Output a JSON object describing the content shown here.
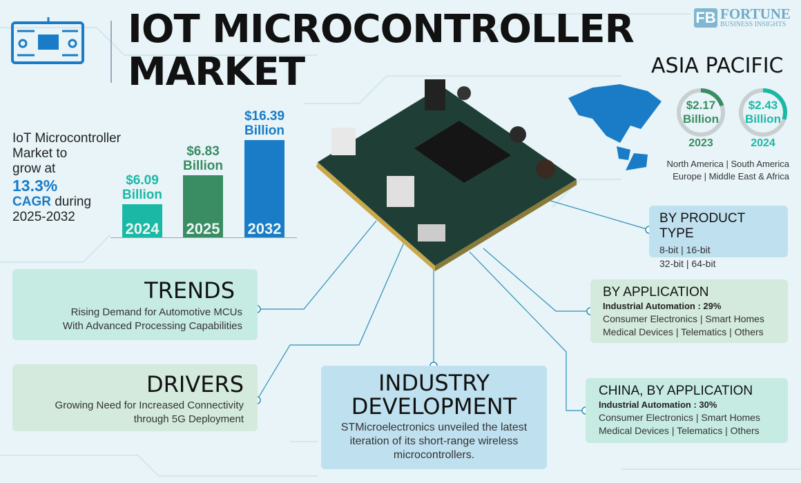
{
  "header": {
    "title_line1": "IOT MICROCONTROLLER",
    "title_line2": "MARKET",
    "logo_word": "FORTUNE",
    "logo_sub": "BUSINESS INSIGHTS"
  },
  "growth": {
    "line1": "IoT Microcontroller",
    "line2": "Market to",
    "line3": "grow at",
    "cagr": "13.3%",
    "cagr_label": "CAGR",
    "during": "during",
    "period": "2025-2032"
  },
  "chart_data": {
    "type": "bar",
    "categories": [
      "2024",
      "2025",
      "2032"
    ],
    "values": [
      6.09,
      6.83,
      16.39
    ],
    "value_labels": [
      "$6.09",
      "$6.83",
      "$16.39"
    ],
    "unit": "Billion",
    "colors": [
      "#1bb8a6",
      "#3a8c62",
      "#1a7cc6"
    ]
  },
  "asia_pacific": {
    "title": "ASIA PACIFIC",
    "items": [
      {
        "value": "$2.17",
        "unit": "Billion",
        "year": "2023",
        "color": "#3a8c62"
      },
      {
        "value": "$2.43",
        "unit": "Billion",
        "year": "2024",
        "color": "#1bb8a6"
      }
    ],
    "regions_line1": "North America  |  South America",
    "regions_line2": "Europe  |  Middle East & Africa"
  },
  "trends": {
    "title": "TRENDS",
    "line1": "Rising Demand for Automotive MCUs",
    "line2": "With Advanced Processing Capabilities"
  },
  "drivers": {
    "title": "DRIVERS",
    "line1": "Growing Need for Increased Connectivity",
    "line2": "through 5G Deployment"
  },
  "industry": {
    "title1": "INDUSTRY",
    "title2": "DEVELOPMENT",
    "line1": "STMicroelectronics unveiled the latest",
    "line2": "iteration of its short-range wireless",
    "line3": "microcontrollers."
  },
  "product_type": {
    "title": "BY PRODUCT TYPE",
    "line1": "8-bit |  16-bit",
    "line2": "32-bit  |  64-bit"
  },
  "application": {
    "title": "BY APPLICATION",
    "highlight": "Industrial Automation : 29%",
    "line1": "Consumer Electronics  |  Smart Homes",
    "line2": "Medical Devices  |  Telematics  |  Others"
  },
  "china": {
    "title": "CHINA, BY APPLICATION",
    "highlight": "Industrial Automation : 30%",
    "line1": "Consumer Electronics  |  Smart Homes",
    "line2": "Medical Devices  |  Telematics  |  Others"
  }
}
